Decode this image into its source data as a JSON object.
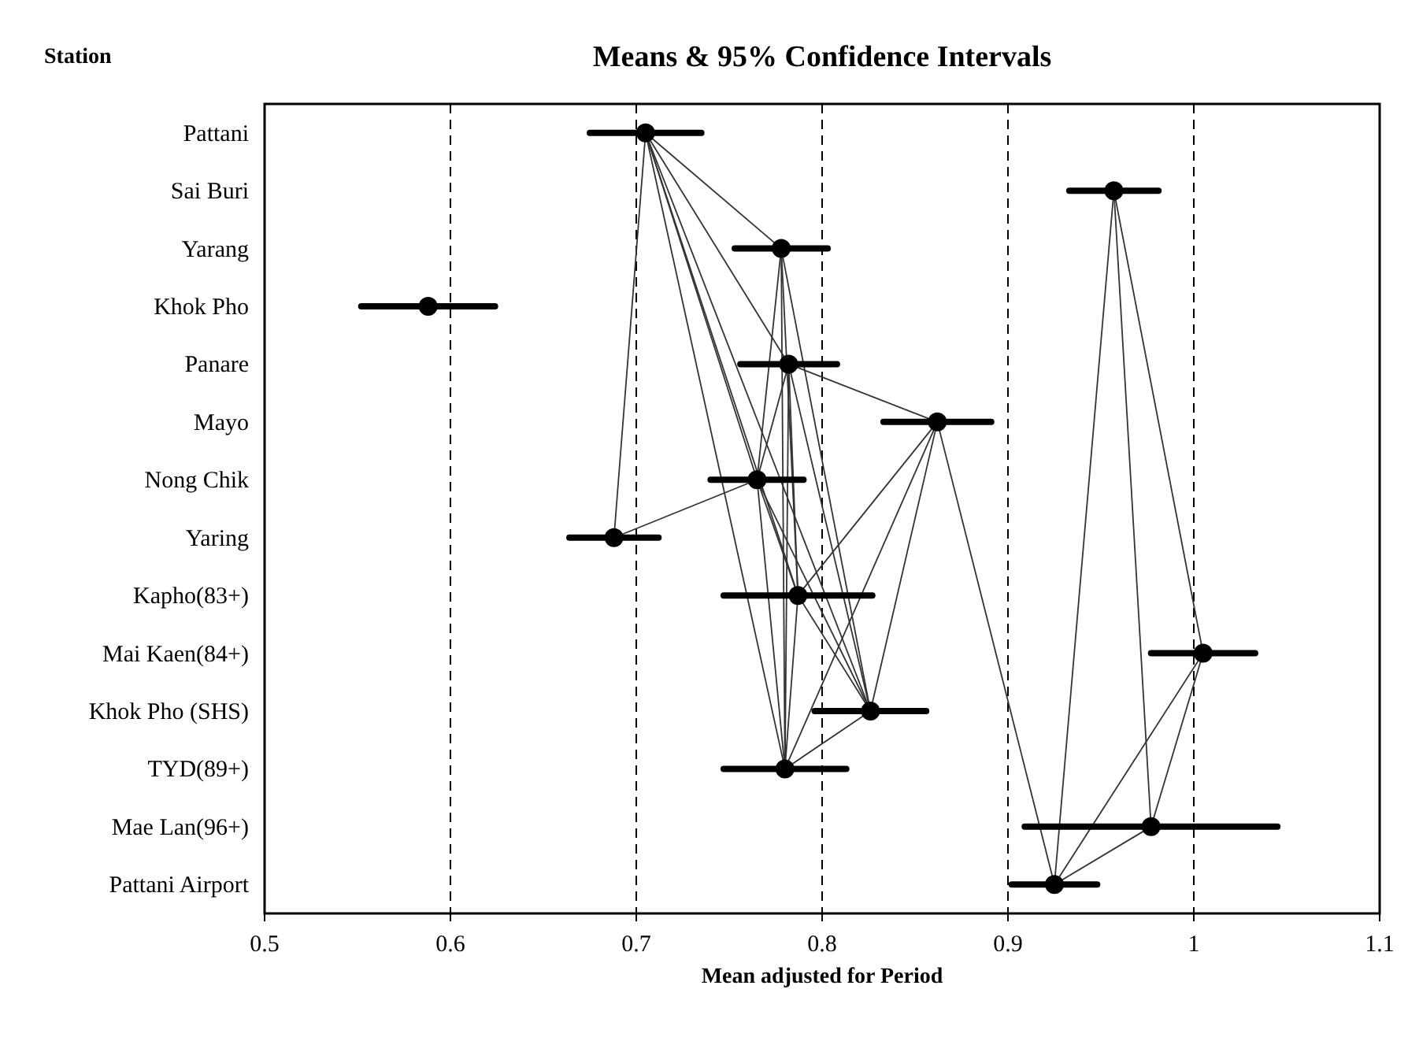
{
  "chart_data": {
    "type": "scatter",
    "orientation": "horizontal",
    "title": "Means & 95% Confidence Intervals",
    "ylabel": "Station",
    "xlabel": "Mean adjusted for Period",
    "categories": [
      "Pattani",
      "Sai Buri",
      "Yarang",
      "Khok Pho",
      "Panare",
      "Mayo",
      "Nong Chik",
      "Yaring",
      "Kapho(83+)",
      "Mai Kaen(84+)",
      "Khok Pho (SHS)",
      "TYD(89+)",
      "Mae Lan(96+)",
      "Pattani Airport"
    ],
    "xlim": [
      0.5,
      1.1
    ],
    "xticks": [
      0.5,
      0.6,
      0.7,
      0.8,
      0.9,
      1,
      1.1
    ],
    "grid": "x",
    "series": [
      {
        "color": "#000000",
        "marker": "circle",
        "values": [
          0.705,
          0.957,
          0.778,
          0.588,
          0.782,
          0.862,
          0.765,
          0.688,
          0.787,
          1.005,
          0.826,
          0.78,
          0.977,
          0.925
        ],
        "errors": [
          0.03,
          0.024,
          0.025,
          0.036,
          0.026,
          0.029,
          0.025,
          0.024,
          0.04,
          0.028,
          0.03,
          0.033,
          0.068,
          0.023
        ]
      },
      {
        "type": "line",
        "color": "#333333",
        "values": [
          0.705,
          null,
          null,
          null,
          null,
          null,
          null,
          0.688,
          null,
          null,
          null,
          null,
          null,
          null
        ]
      },
      {
        "type": "line",
        "color": "#333333",
        "values": [
          0.705,
          null,
          0.778,
          null,
          null,
          null,
          null,
          null,
          null,
          null,
          null,
          null,
          null,
          null
        ]
      },
      {
        "type": "line",
        "color": "#333333",
        "values": [
          0.705,
          null,
          null,
          null,
          0.782,
          null,
          null,
          null,
          null,
          null,
          null,
          null,
          null,
          null
        ]
      },
      {
        "type": "line",
        "color": "#333333",
        "values": [
          0.705,
          null,
          null,
          null,
          null,
          null,
          null,
          null,
          0.787,
          null,
          null,
          null,
          null,
          null
        ]
      },
      {
        "type": "line",
        "color": "#333333",
        "values": [
          0.705,
          null,
          null,
          null,
          null,
          null,
          null,
          null,
          null,
          null,
          null,
          0.78,
          null,
          null
        ]
      },
      {
        "type": "line",
        "color": "#333333",
        "values": [
          0.705,
          null,
          null,
          null,
          null,
          null,
          null,
          null,
          null,
          null,
          0.826,
          null,
          null,
          null
        ]
      },
      {
        "type": "line",
        "color": "#333333",
        "values": [
          0.705,
          null,
          null,
          null,
          null,
          null,
          0.765,
          null,
          null,
          null,
          null,
          null,
          null,
          null
        ]
      },
      {
        "type": "line",
        "color": "#333333",
        "values": [
          null,
          null,
          0.778,
          null,
          null,
          null,
          null,
          null,
          0.787,
          null,
          null,
          null,
          null,
          null
        ]
      },
      {
        "type": "line",
        "color": "#333333",
        "values": [
          null,
          null,
          0.778,
          null,
          null,
          null,
          null,
          null,
          null,
          null,
          null,
          0.78,
          null,
          null
        ]
      },
      {
        "type": "line",
        "color": "#333333",
        "values": [
          null,
          null,
          0.778,
          null,
          null,
          null,
          null,
          null,
          null,
          null,
          0.826,
          null,
          null,
          null
        ]
      },
      {
        "type": "line",
        "color": "#333333",
        "values": [
          null,
          null,
          0.778,
          null,
          null,
          null,
          0.765,
          null,
          null,
          null,
          null,
          null,
          null,
          null
        ]
      },
      {
        "type": "line",
        "color": "#333333",
        "values": [
          null,
          null,
          null,
          null,
          0.782,
          0.862,
          null,
          null,
          null,
          null,
          null,
          null,
          null,
          null
        ]
      },
      {
        "type": "line",
        "color": "#333333",
        "values": [
          null,
          null,
          null,
          null,
          0.782,
          null,
          0.765,
          null,
          null,
          null,
          null,
          null,
          null,
          null
        ]
      },
      {
        "type": "line",
        "color": "#333333",
        "values": [
          null,
          null,
          null,
          null,
          0.782,
          null,
          null,
          null,
          null,
          null,
          null,
          0.78,
          null,
          null
        ]
      },
      {
        "type": "line",
        "color": "#333333",
        "values": [
          null,
          null,
          null,
          null,
          0.782,
          null,
          null,
          null,
          0.787,
          null,
          null,
          null,
          null,
          null
        ]
      },
      {
        "type": "line",
        "color": "#333333",
        "values": [
          null,
          null,
          null,
          null,
          0.782,
          null,
          null,
          null,
          null,
          null,
          0.826,
          null,
          null,
          null
        ]
      },
      {
        "type": "line",
        "color": "#333333",
        "values": [
          null,
          null,
          null,
          null,
          null,
          null,
          0.765,
          0.688,
          null,
          null,
          null,
          null,
          null,
          null
        ]
      },
      {
        "type": "line",
        "color": "#333333",
        "values": [
          null,
          null,
          null,
          null,
          null,
          null,
          0.765,
          null,
          0.787,
          null,
          null,
          null,
          null,
          null
        ]
      },
      {
        "type": "line",
        "color": "#333333",
        "values": [
          null,
          null,
          null,
          null,
          null,
          null,
          0.765,
          null,
          null,
          null,
          null,
          0.78,
          null,
          null
        ]
      },
      {
        "type": "line",
        "color": "#333333",
        "values": [
          null,
          null,
          null,
          null,
          null,
          null,
          0.765,
          null,
          null,
          null,
          0.826,
          null,
          null,
          null
        ]
      },
      {
        "type": "line",
        "color": "#333333",
        "values": [
          null,
          null,
          null,
          null,
          null,
          0.862,
          null,
          null,
          0.787,
          null,
          null,
          null,
          null,
          null
        ]
      },
      {
        "type": "line",
        "color": "#333333",
        "values": [
          null,
          null,
          null,
          null,
          null,
          0.862,
          null,
          null,
          null,
          null,
          null,
          0.78,
          null,
          null
        ]
      },
      {
        "type": "line",
        "color": "#333333",
        "values": [
          null,
          null,
          null,
          null,
          null,
          0.862,
          null,
          null,
          null,
          null,
          0.826,
          null,
          null,
          null
        ]
      },
      {
        "type": "line",
        "color": "#333333",
        "values": [
          null,
          null,
          null,
          null,
          null,
          0.862,
          null,
          null,
          null,
          null,
          null,
          null,
          null,
          0.925
        ]
      },
      {
        "type": "line",
        "color": "#333333",
        "values": [
          null,
          null,
          null,
          null,
          null,
          null,
          null,
          null,
          0.787,
          null,
          null,
          0.78,
          null,
          null
        ]
      },
      {
        "type": "line",
        "color": "#333333",
        "values": [
          null,
          null,
          null,
          null,
          null,
          null,
          null,
          null,
          0.787,
          null,
          0.826,
          null,
          null,
          null
        ]
      },
      {
        "type": "line",
        "color": "#333333",
        "values": [
          null,
          null,
          null,
          null,
          null,
          null,
          null,
          null,
          null,
          null,
          0.826,
          0.78,
          null,
          null
        ]
      },
      {
        "type": "line",
        "color": "#333333",
        "values": [
          null,
          0.957,
          null,
          null,
          null,
          null,
          null,
          null,
          null,
          null,
          null,
          null,
          null,
          0.925
        ]
      },
      {
        "type": "line",
        "color": "#333333",
        "values": [
          null,
          0.957,
          null,
          null,
          null,
          null,
          null,
          null,
          null,
          null,
          null,
          null,
          0.977,
          null
        ]
      },
      {
        "type": "line",
        "color": "#333333",
        "values": [
          null,
          0.957,
          null,
          null,
          null,
          null,
          null,
          null,
          null,
          1.005,
          null,
          null,
          null,
          null
        ]
      },
      {
        "type": "line",
        "color": "#333333",
        "values": [
          null,
          null,
          null,
          null,
          null,
          null,
          null,
          null,
          null,
          1.005,
          null,
          null,
          0.977,
          null
        ]
      },
      {
        "type": "line",
        "color": "#333333",
        "values": [
          null,
          null,
          null,
          null,
          null,
          null,
          null,
          null,
          null,
          1.005,
          null,
          null,
          null,
          0.925
        ]
      },
      {
        "type": "line",
        "color": "#333333",
        "values": [
          null,
          null,
          null,
          null,
          null,
          null,
          null,
          null,
          null,
          null,
          null,
          null,
          0.977,
          0.925
        ]
      }
    ]
  }
}
